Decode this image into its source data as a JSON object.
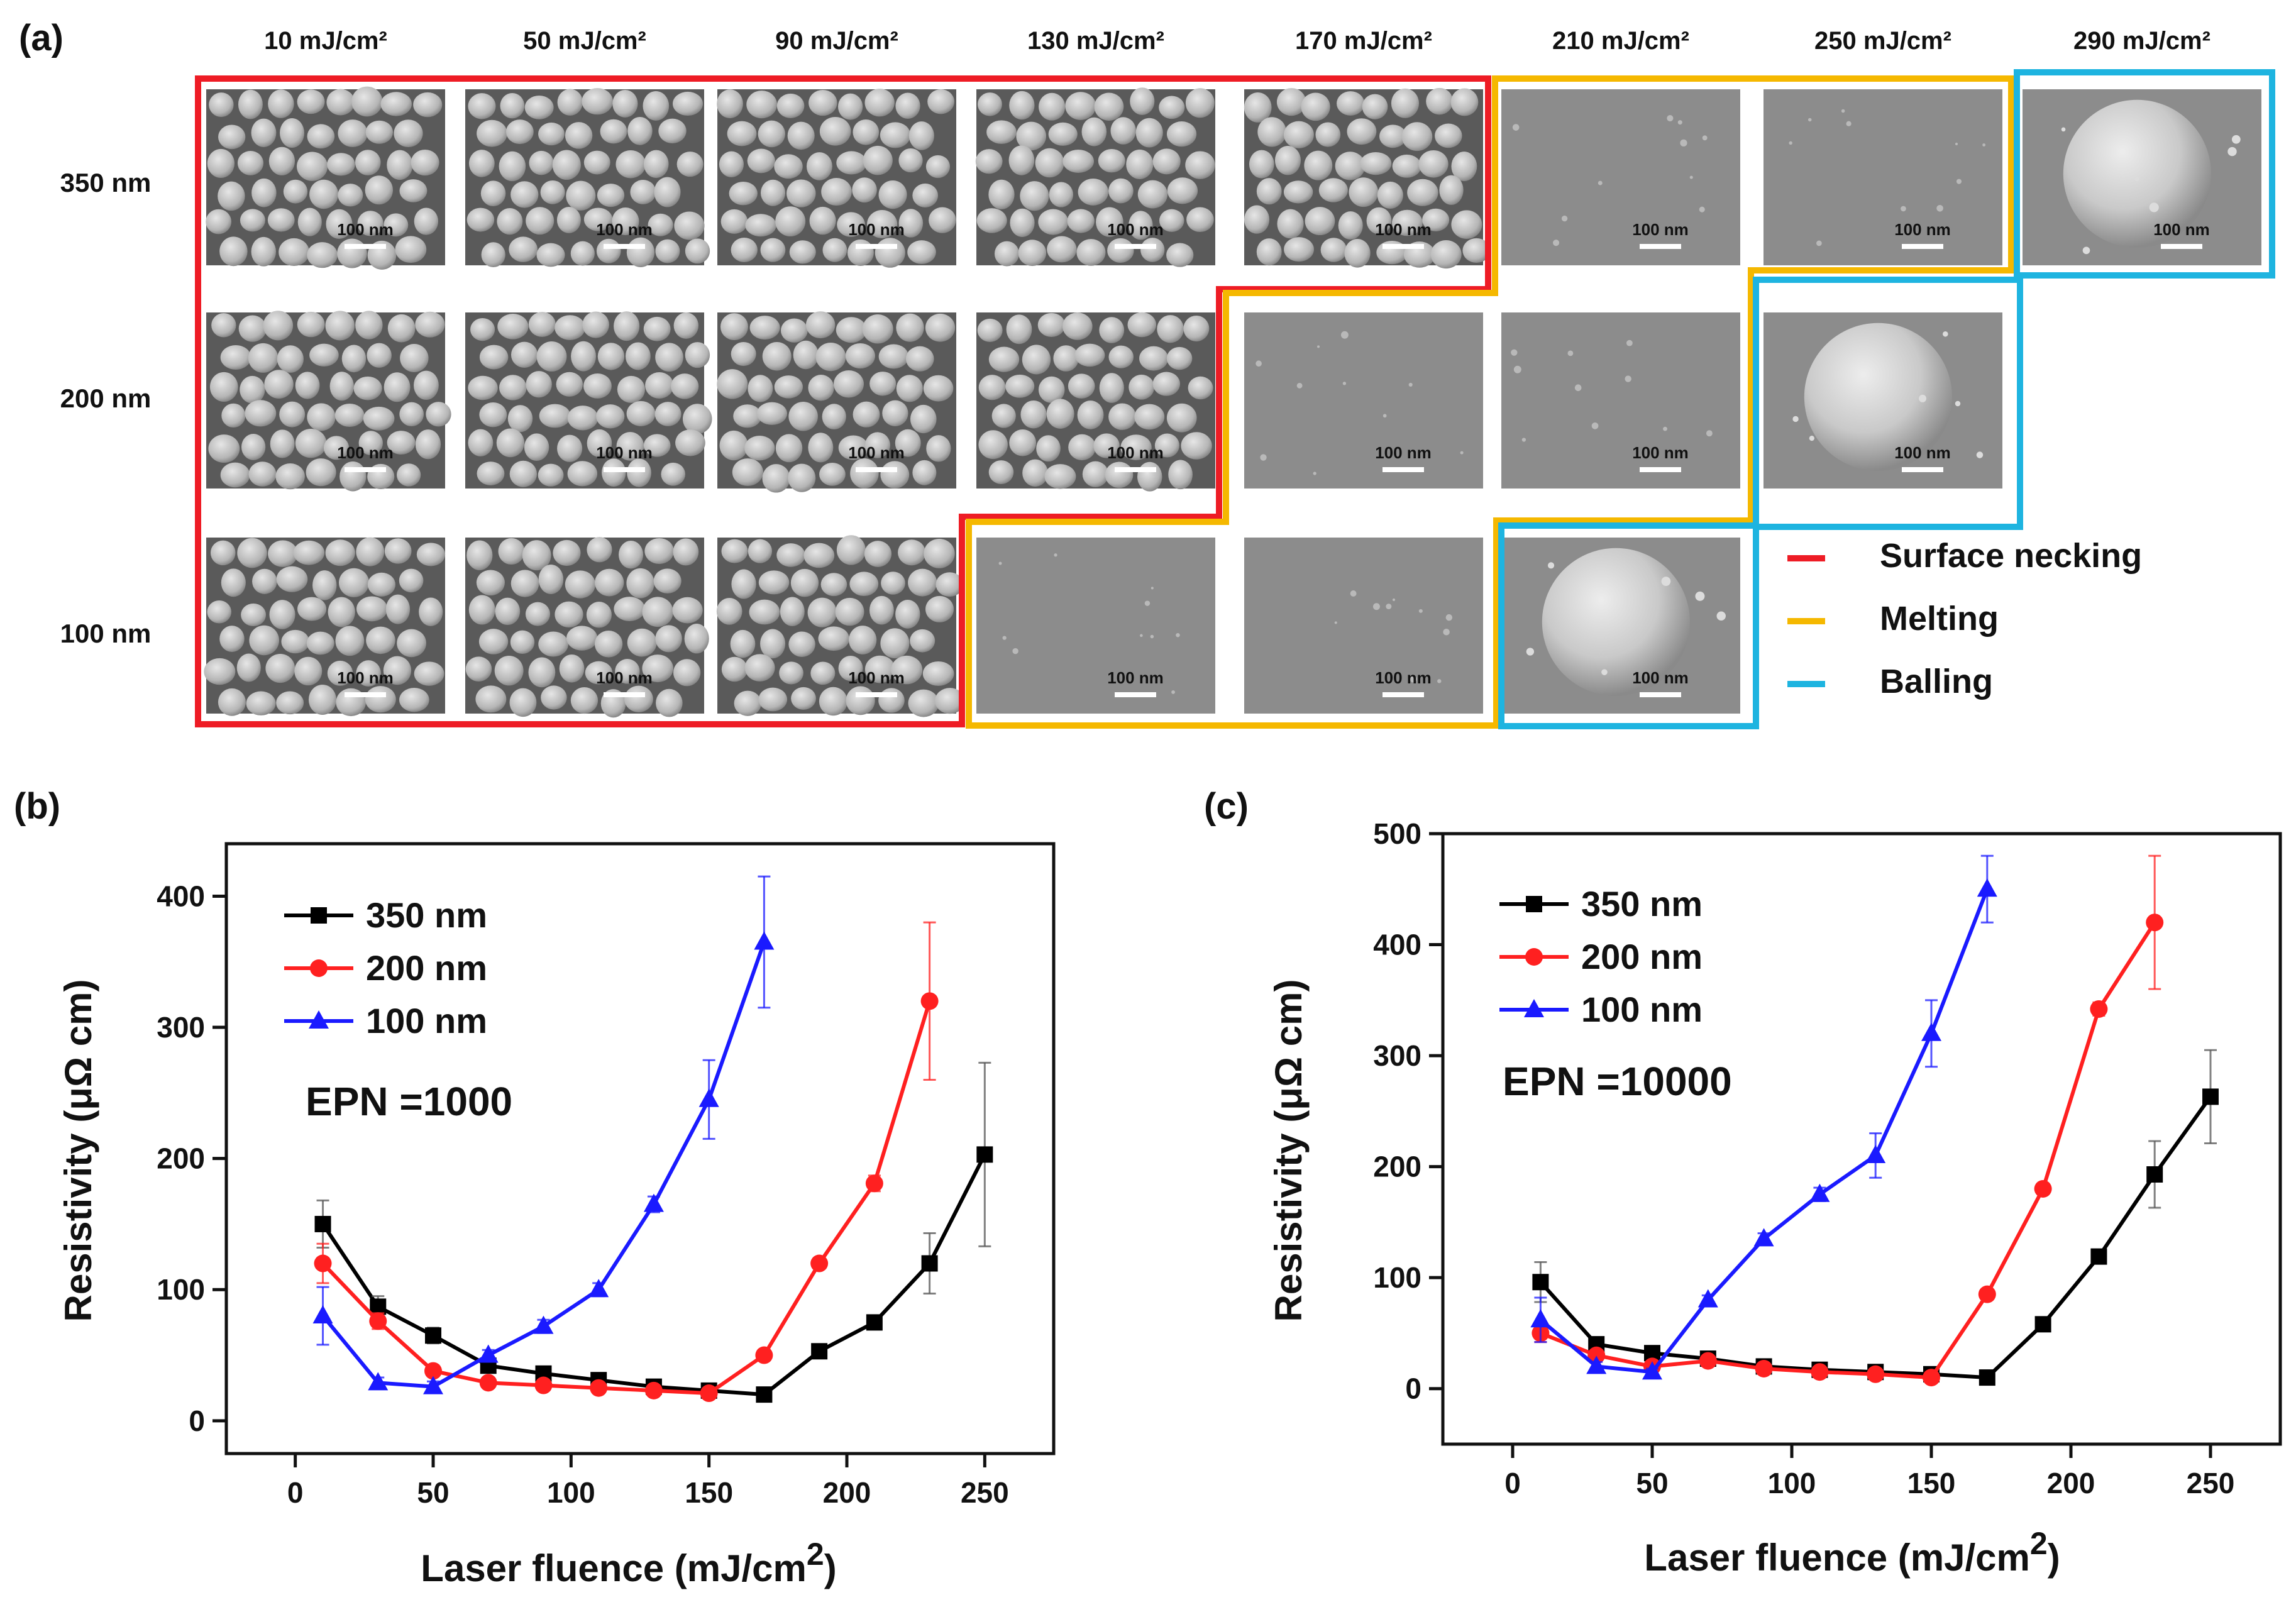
{
  "panel_a": {
    "label": "(a)",
    "fluences": [
      "10 mJ/cm²",
      "50 mJ/cm²",
      "90 mJ/cm²",
      "130 mJ/cm²",
      "170 mJ/cm²",
      "210 mJ/cm²",
      "250 mJ/cm²",
      "290 mJ/cm²"
    ],
    "thicknesses": [
      "350 nm",
      "200 nm",
      "100 nm"
    ],
    "scale_bar": "100 nm",
    "legend": [
      {
        "label": "Surface necking",
        "color": "#ee1c25"
      },
      {
        "label": "Melting",
        "color": "#f5b800"
      },
      {
        "label": "Balling",
        "color": "#1eb4e0"
      }
    ],
    "regimes": [
      [
        "necking",
        "necking",
        "necking",
        "necking",
        "necking",
        "melting",
        "melting",
        "balling"
      ],
      [
        "necking",
        "necking",
        "necking",
        "necking",
        "melting",
        "melting",
        "balling",
        "none"
      ],
      [
        "necking",
        "necking",
        "necking",
        "melting",
        "melting",
        "balling",
        "none",
        "none"
      ]
    ]
  },
  "chart_data": [
    {
      "panel": "(b)",
      "type": "line",
      "annotation": "EPN =1000",
      "xlabel": "Laser fluence (mJ/cm",
      "xlabel_sup": "2",
      "xlabel_close": ")",
      "ylabel": "Resistivity (μΩ cm)",
      "xlim": [
        -25,
        275
      ],
      "ylim": [
        -25,
        440
      ],
      "xticks": [
        0,
        50,
        100,
        150,
        200,
        250
      ],
      "yticks": [
        0,
        100,
        200,
        300,
        400
      ],
      "series": [
        {
          "name": "350 nm",
          "color": "#000000",
          "marker": "square",
          "x": [
            10,
            30,
            50,
            70,
            90,
            110,
            130,
            150,
            170,
            190,
            210,
            230,
            250
          ],
          "y": [
            150,
            87,
            65,
            42,
            36,
            31,
            26,
            23,
            20,
            53,
            75,
            120,
            203
          ],
          "err": [
            18,
            8,
            6,
            5,
            4,
            4,
            3,
            3,
            3,
            4,
            5,
            23,
            70
          ]
        },
        {
          "name": "200 nm",
          "color": "#ff2020",
          "marker": "circle",
          "x": [
            10,
            30,
            50,
            70,
            90,
            110,
            130,
            150,
            170,
            190,
            210,
            230
          ],
          "y": [
            120,
            76,
            38,
            29,
            27,
            25,
            23,
            21,
            50,
            120,
            181,
            320
          ],
          "err": [
            15,
            6,
            4,
            3,
            3,
            3,
            3,
            3,
            4,
            4,
            6,
            60
          ]
        },
        {
          "name": "100 nm",
          "color": "#1a1aff",
          "marker": "triangle",
          "x": [
            10,
            30,
            50,
            70,
            90,
            110,
            130,
            150,
            170
          ],
          "y": [
            80,
            29,
            26,
            50,
            72,
            100,
            165,
            245,
            365
          ],
          "err": [
            22,
            4,
            4,
            4,
            5,
            5,
            6,
            30,
            50
          ]
        }
      ]
    },
    {
      "panel": "(c)",
      "type": "line",
      "annotation": "EPN =10000",
      "xlabel": "Laser fluence (mJ/cm",
      "xlabel_sup": "2",
      "xlabel_close": ")",
      "ylabel": "Resistivity (μΩ cm)",
      "xlim": [
        -25,
        275
      ],
      "ylim": [
        -50,
        500
      ],
      "xticks": [
        0,
        50,
        100,
        150,
        200,
        250
      ],
      "yticks": [
        0,
        100,
        200,
        300,
        400,
        500
      ],
      "series": [
        {
          "name": "350 nm",
          "color": "#000000",
          "marker": "square",
          "x": [
            10,
            30,
            50,
            70,
            90,
            110,
            130,
            150,
            170,
            190,
            210,
            230,
            250
          ],
          "y": [
            96,
            40,
            32,
            27,
            20,
            17,
            15,
            13,
            10,
            58,
            119,
            193,
            263
          ],
          "err": [
            18,
            6,
            5,
            4,
            3,
            3,
            3,
            3,
            3,
            4,
            5,
            30,
            42
          ]
        },
        {
          "name": "200 nm",
          "color": "#ff2020",
          "marker": "circle",
          "x": [
            10,
            30,
            50,
            70,
            90,
            110,
            130,
            150,
            170,
            190,
            210,
            230
          ],
          "y": [
            50,
            30,
            20,
            25,
            18,
            15,
            13,
            10,
            85,
            180,
            342,
            420
          ],
          "err": [
            8,
            4,
            3,
            3,
            3,
            3,
            3,
            3,
            4,
            4,
            6,
            60
          ]
        },
        {
          "name": "100 nm",
          "color": "#1a1aff",
          "marker": "triangle",
          "x": [
            10,
            30,
            50,
            70,
            90,
            110,
            130,
            150,
            170
          ],
          "y": [
            62,
            20,
            15,
            80,
            135,
            175,
            210,
            320,
            450
          ],
          "err": [
            20,
            4,
            3,
            4,
            5,
            6,
            20,
            30,
            30
          ]
        }
      ]
    }
  ]
}
